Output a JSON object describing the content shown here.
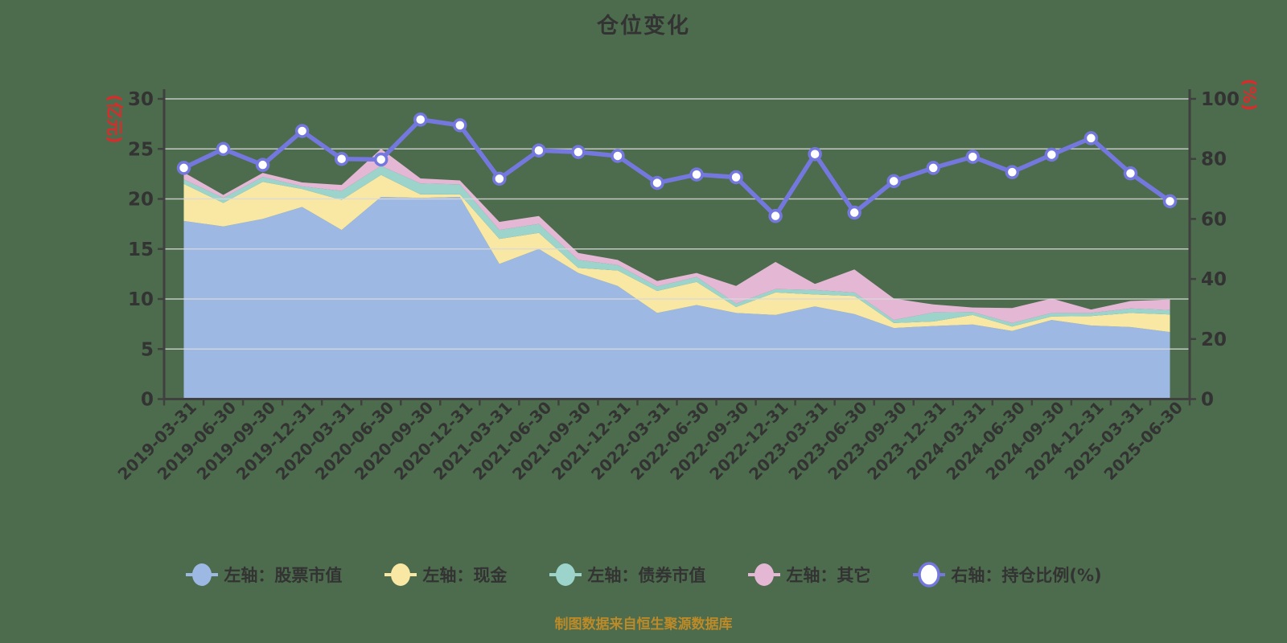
{
  "title": "仓位变化",
  "footer": "制图数据来自恒生聚源数据库",
  "colors": {
    "background": "#4d6c4d",
    "axis": "#404040",
    "grid": "#d9d9d9",
    "text": "#333333",
    "unit_label": "#d92b2b",
    "footer": "#bd8a28"
  },
  "left_axis": {
    "unit": "(亿元)",
    "min": 0,
    "max": 30,
    "tick_step": 5,
    "ticks": [
      0,
      5,
      10,
      15,
      20,
      25,
      30
    ]
  },
  "right_axis": {
    "unit": "(%)",
    "min": 0,
    "max": 100,
    "tick_step": 20,
    "ticks": [
      0,
      20,
      40,
      60,
      80,
      100
    ]
  },
  "chart_data": {
    "type": "combo",
    "subtype": "stacked-area-with-line",
    "title": "仓位变化",
    "grid": true,
    "legend_position": "bottom",
    "left_ylim": [
      0,
      30
    ],
    "right_ylim": [
      0,
      100
    ],
    "categories": [
      "2019-03-31",
      "2019-06-30",
      "2019-09-30",
      "2019-12-31",
      "2020-03-31",
      "2020-06-30",
      "2020-09-30",
      "2020-12-31",
      "2021-03-31",
      "2021-06-30",
      "2021-09-30",
      "2021-12-31",
      "2022-03-31",
      "2022-06-30",
      "2022-09-30",
      "2022-12-31",
      "2023-03-31",
      "2023-06-30",
      "2023-09-30",
      "2023-12-31",
      "2024-03-31",
      "2024-06-30",
      "2024-09-30",
      "2024-12-31",
      "2025-03-31",
      "2025-06-30"
    ],
    "series": [
      {
        "name": "左轴：股票市值",
        "type": "area",
        "stack": true,
        "axis": "left",
        "color": "#9db8e2",
        "values": [
          17.8,
          17.25,
          18.0,
          19.2,
          16.9,
          20.2,
          20.1,
          20.2,
          13.5,
          15.0,
          12.6,
          11.3,
          8.6,
          9.4,
          8.6,
          8.4,
          9.25,
          8.5,
          7.1,
          7.3,
          7.45,
          6.8,
          7.9,
          7.35,
          7.2,
          6.7
        ]
      },
      {
        "name": "左轴：现金",
        "type": "area",
        "stack": true,
        "axis": "left",
        "color": "#f8e8a4",
        "values": [
          3.7,
          2.35,
          3.7,
          1.8,
          3.0,
          2.2,
          0.35,
          0.25,
          2.5,
          1.6,
          0.5,
          1.55,
          2.2,
          2.3,
          0.6,
          2.25,
          1.2,
          1.8,
          0.5,
          0.45,
          0.95,
          0.45,
          0.35,
          0.95,
          1.4,
          1.75
        ]
      },
      {
        "name": "左轴：债券市值",
        "type": "area",
        "stack": true,
        "axis": "left",
        "color": "#9cd4cc",
        "values": [
          0.45,
          0.5,
          0.5,
          0.25,
          0.9,
          0.9,
          1.1,
          1.0,
          0.9,
          0.9,
          0.8,
          0.55,
          0.45,
          0.5,
          0.35,
          0.35,
          0.45,
          0.35,
          0.3,
          0.9,
          0.3,
          0.35,
          0.35,
          0.3,
          0.45,
          0.45
        ]
      },
      {
        "name": "左轴：其它",
        "type": "area",
        "stack": true,
        "axis": "left",
        "color": "#e4b8d5",
        "values": [
          0.7,
          0.3,
          0.4,
          0.4,
          0.6,
          1.7,
          0.5,
          0.4,
          0.8,
          0.8,
          0.7,
          0.5,
          0.55,
          0.4,
          1.75,
          2.7,
          0.6,
          2.3,
          2.15,
          0.8,
          0.45,
          1.5,
          1.45,
          0.35,
          0.75,
          1.05
        ]
      },
      {
        "name": "右轴：持仓比例(%)",
        "type": "line",
        "axis": "right",
        "color": "#7478de",
        "marker": "hollow-circle",
        "values": [
          77,
          83.3,
          78,
          89.3,
          80,
          79.8,
          93.1,
          91.2,
          73.4,
          82.8,
          82.3,
          81,
          72,
          74.8,
          73.9,
          61,
          81.6,
          62.1,
          72.6,
          77,
          80.7,
          75.6,
          81.4,
          86.9,
          75.2,
          65.9
        ]
      }
    ]
  }
}
